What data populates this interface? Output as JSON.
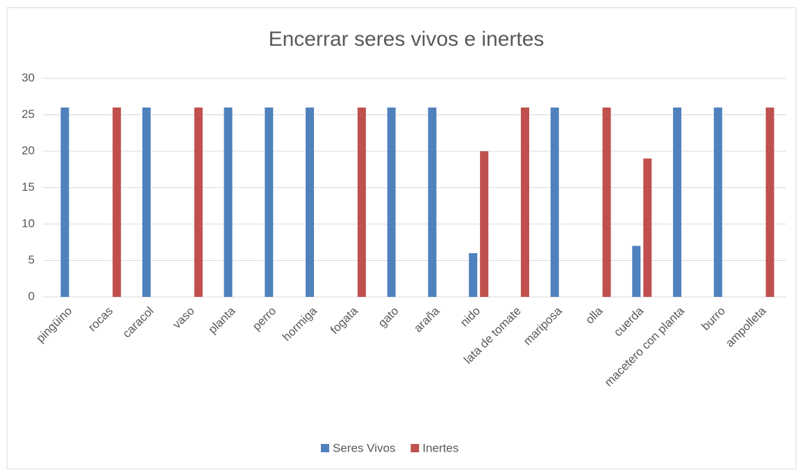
{
  "chart_data": {
    "type": "bar",
    "title": "Encerrar seres vivos e inertes",
    "categories": [
      "pingüino",
      "rocas",
      "caracol",
      "vaso",
      "planta",
      "perro",
      "hormiga",
      "fogata",
      "gato",
      "araña",
      "nido",
      "lata de tomate",
      "mariposa",
      "olla",
      "cuerda",
      "macetero con planta",
      "burro",
      "ampolleta"
    ],
    "series": [
      {
        "name": "Seres Vivos",
        "color": "#4f81bd",
        "values": [
          26,
          0,
          26,
          0,
          26,
          26,
          26,
          0,
          26,
          26,
          6,
          0,
          26,
          0,
          7,
          26,
          26,
          0
        ]
      },
      {
        "name": "Inertes",
        "color": "#c0504d",
        "values": [
          0,
          26,
          0,
          26,
          0,
          0,
          0,
          26,
          0,
          0,
          20,
          26,
          0,
          26,
          19,
          0,
          0,
          26
        ]
      }
    ],
    "ylim": [
      0,
      30
    ],
    "yticks": [
      0,
      5,
      10,
      15,
      20,
      25,
      30
    ],
    "grid": true,
    "legend": "bottom"
  }
}
